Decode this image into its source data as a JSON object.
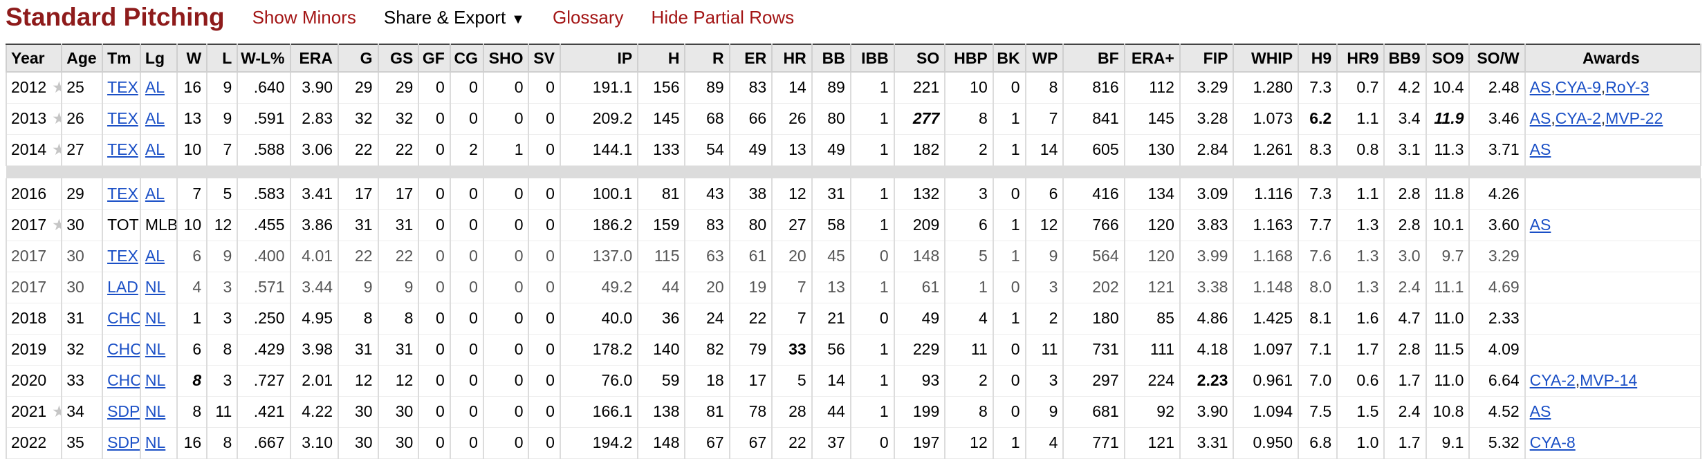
{
  "header": {
    "title": "Standard Pitching",
    "show_minors": "Show Minors",
    "share_export": "Share & Export",
    "share_caret": "▼",
    "glossary": "Glossary",
    "hide_partial": "Hide Partial Rows"
  },
  "colors": {
    "title": "#8e1b1b",
    "link": "#1a4fc6",
    "header_link": "#a31515"
  },
  "table": {
    "columns": [
      "Year",
      "Age",
      "Tm",
      "Lg",
      "W",
      "L",
      "W-L%",
      "ERA",
      "G",
      "GS",
      "GF",
      "CG",
      "SHO",
      "SV",
      "IP",
      "H",
      "R",
      "ER",
      "HR",
      "BB",
      "IBB",
      "SO",
      "HBP",
      "BK",
      "WP",
      "BF",
      "ERA+",
      "FIP",
      "WHIP",
      "H9",
      "HR9",
      "BB9",
      "SO9",
      "SO/W",
      "Awards"
    ],
    "rows": [
      {
        "type": "season",
        "star": true,
        "cells": [
          "2012",
          "25",
          "TEX",
          "AL",
          "16",
          "9",
          ".640",
          "3.90",
          "29",
          "29",
          "0",
          "0",
          "0",
          "0",
          "191.1",
          "156",
          "89",
          "83",
          "14",
          "89",
          "1",
          "221",
          "10",
          "0",
          "8",
          "816",
          "112",
          "3.29",
          "1.280",
          "7.3",
          "0.7",
          "4.2",
          "10.4",
          "2.48"
        ],
        "awards": [
          "AS",
          "CYA-9",
          "RoY-3"
        ]
      },
      {
        "type": "season",
        "star": true,
        "cells": [
          "2013",
          "26",
          "TEX",
          "AL",
          "13",
          "9",
          ".591",
          "2.83",
          "32",
          "32",
          "0",
          "0",
          "0",
          "0",
          "209.2",
          "145",
          "68",
          "66",
          "26",
          "80",
          "1",
          "277",
          "8",
          "1",
          "7",
          "841",
          "145",
          "3.28",
          "1.073",
          "6.2",
          "1.1",
          "3.4",
          "11.9",
          "3.46"
        ],
        "awards": [
          "AS",
          "CYA-2",
          "MVP-22"
        ]
      },
      {
        "type": "season",
        "star": true,
        "cells": [
          "2014",
          "27",
          "TEX",
          "AL",
          "10",
          "7",
          ".588",
          "3.06",
          "22",
          "22",
          "0",
          "2",
          "1",
          "0",
          "144.1",
          "133",
          "54",
          "49",
          "13",
          "49",
          "1",
          "182",
          "2",
          "1",
          "14",
          "605",
          "130",
          "2.84",
          "1.261",
          "8.3",
          "0.8",
          "3.1",
          "11.3",
          "3.71"
        ],
        "awards": [
          "AS"
        ]
      },
      {
        "type": "spacer"
      },
      {
        "type": "season",
        "star": false,
        "cells": [
          "2016",
          "29",
          "TEX",
          "AL",
          "7",
          "5",
          ".583",
          "3.41",
          "17",
          "17",
          "0",
          "0",
          "0",
          "0",
          "100.1",
          "81",
          "43",
          "38",
          "12",
          "31",
          "1",
          "132",
          "3",
          "0",
          "6",
          "416",
          "134",
          "3.09",
          "1.116",
          "7.3",
          "1.1",
          "2.8",
          "11.8",
          "4.26"
        ],
        "awards": []
      },
      {
        "type": "season",
        "star": true,
        "cells": [
          "2017",
          "30",
          "TOT",
          "MLB",
          "10",
          "12",
          ".455",
          "3.86",
          "31",
          "31",
          "0",
          "0",
          "0",
          "0",
          "186.2",
          "159",
          "83",
          "80",
          "27",
          "58",
          "1",
          "209",
          "6",
          "1",
          "12",
          "766",
          "120",
          "3.83",
          "1.163",
          "7.7",
          "1.3",
          "2.8",
          "10.1",
          "3.60"
        ],
        "awards": [
          "AS"
        ]
      },
      {
        "type": "partial",
        "star": false,
        "cells": [
          "2017",
          "30",
          "TEX",
          "AL",
          "6",
          "9",
          ".400",
          "4.01",
          "22",
          "22",
          "0",
          "0",
          "0",
          "0",
          "137.0",
          "115",
          "63",
          "61",
          "20",
          "45",
          "0",
          "148",
          "5",
          "1",
          "9",
          "564",
          "120",
          "3.99",
          "1.168",
          "7.6",
          "1.3",
          "3.0",
          "9.7",
          "3.29"
        ],
        "awards": []
      },
      {
        "type": "partial",
        "star": false,
        "cells": [
          "2017",
          "30",
          "LAD",
          "NL",
          "4",
          "3",
          ".571",
          "3.44",
          "9",
          "9",
          "0",
          "0",
          "0",
          "0",
          "49.2",
          "44",
          "20",
          "19",
          "7",
          "13",
          "1",
          "61",
          "1",
          "0",
          "3",
          "202",
          "121",
          "3.38",
          "1.148",
          "8.0",
          "1.3",
          "2.4",
          "11.1",
          "4.69"
        ],
        "awards": []
      },
      {
        "type": "season",
        "star": false,
        "cells": [
          "2018",
          "31",
          "CHC",
          "NL",
          "1",
          "3",
          ".250",
          "4.95",
          "8",
          "8",
          "0",
          "0",
          "0",
          "0",
          "40.0",
          "36",
          "24",
          "22",
          "7",
          "21",
          "0",
          "49",
          "4",
          "1",
          "2",
          "180",
          "85",
          "4.86",
          "1.425",
          "8.1",
          "1.6",
          "4.7",
          "11.0",
          "2.33"
        ],
        "awards": []
      },
      {
        "type": "season",
        "star": false,
        "cells": [
          "2019",
          "32",
          "CHC",
          "NL",
          "6",
          "8",
          ".429",
          "3.98",
          "31",
          "31",
          "0",
          "0",
          "0",
          "0",
          "178.2",
          "140",
          "82",
          "79",
          "33",
          "56",
          "1",
          "229",
          "11",
          "0",
          "11",
          "731",
          "111",
          "4.18",
          "1.097",
          "7.1",
          "1.7",
          "2.8",
          "11.5",
          "4.09"
        ],
        "awards": []
      },
      {
        "type": "season",
        "star": false,
        "cells": [
          "2020",
          "33",
          "CHC",
          "NL",
          "8",
          "3",
          ".727",
          "2.01",
          "12",
          "12",
          "0",
          "0",
          "0",
          "0",
          "76.0",
          "59",
          "18",
          "17",
          "5",
          "14",
          "1",
          "93",
          "2",
          "0",
          "3",
          "297",
          "224",
          "2.23",
          "0.961",
          "7.0",
          "0.6",
          "1.7",
          "11.0",
          "6.64"
        ],
        "awards": [
          "CYA-2",
          "MVP-14"
        ]
      },
      {
        "type": "season",
        "star": true,
        "cells": [
          "2021",
          "34",
          "SDP",
          "NL",
          "8",
          "11",
          ".421",
          "4.22",
          "30",
          "30",
          "0",
          "0",
          "0",
          "0",
          "166.1",
          "138",
          "81",
          "78",
          "28",
          "44",
          "1",
          "199",
          "8",
          "0",
          "9",
          "681",
          "92",
          "3.90",
          "1.094",
          "7.5",
          "1.5",
          "2.4",
          "10.8",
          "4.52"
        ],
        "awards": [
          "AS"
        ]
      },
      {
        "type": "season",
        "star": false,
        "cells": [
          "2022",
          "35",
          "SDP",
          "NL",
          "16",
          "8",
          ".667",
          "3.10",
          "30",
          "30",
          "0",
          "0",
          "0",
          "0",
          "194.2",
          "148",
          "67",
          "67",
          "22",
          "37",
          "0",
          "197",
          "12",
          "1",
          "4",
          "771",
          "121",
          "3.31",
          "0.950",
          "6.8",
          "1.0",
          "1.7",
          "9.1",
          "5.32"
        ],
        "awards": [
          "CYA-8"
        ]
      }
    ]
  }
}
